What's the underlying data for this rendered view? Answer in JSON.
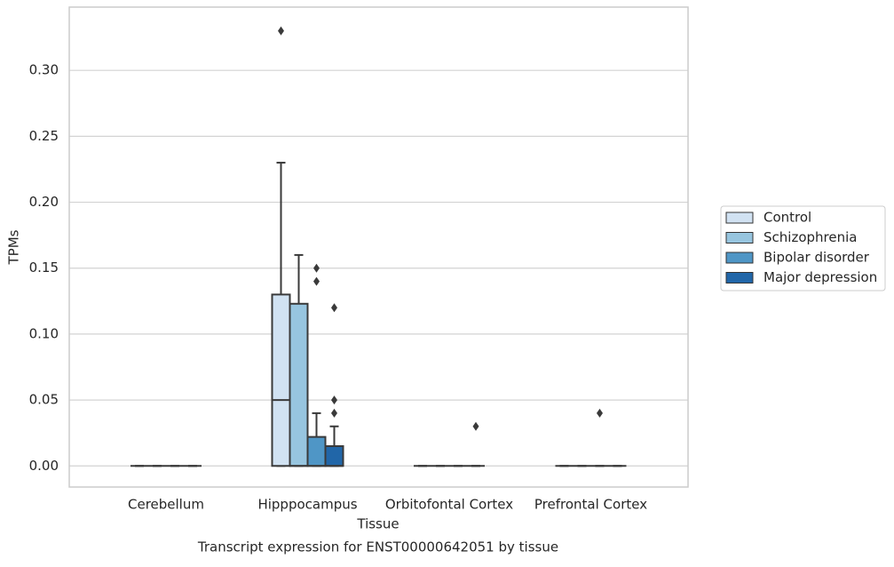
{
  "chart_data": {
    "type": "box",
    "title": "Transcript expression for ENST00000642051 by tissue",
    "x_label": "Tissue",
    "y_label": "TPMs",
    "categories": [
      "Cerebellum",
      "Hipppocampus",
      "Orbitofontal Cortex",
      "Prefrontal Cortex"
    ],
    "ylim": [
      -0.016,
      0.348
    ],
    "yticks": [
      {
        "value": 0,
        "label": "0.00"
      },
      0.05,
      {
        "value": 0.1,
        "label": "0.10"
      },
      0.15,
      {
        "value": 0.2,
        "label": "0.20"
      },
      0.25,
      {
        "value": 0.3,
        "label": "0.30"
      }
    ],
    "grid": true,
    "legend": "right",
    "series": [
      {
        "name": "Control",
        "color": "#d1e2f2",
        "boxes": [
          {
            "min": 0,
            "q1": 0,
            "median": 0,
            "q3": 0,
            "max": 0,
            "outliers": []
          },
          {
            "min": 0,
            "q1": 0,
            "median": 0.05,
            "q3": 0.13,
            "max": 0.23,
            "outliers": [
              0.33
            ]
          },
          {
            "min": 0,
            "q1": 0,
            "median": 0,
            "q3": 0,
            "max": 0,
            "outliers": []
          },
          {
            "min": 0,
            "q1": 0,
            "median": 0,
            "q3": 0,
            "max": 0,
            "outliers": []
          }
        ]
      },
      {
        "name": "Schizophrenia",
        "color": "#97c5df",
        "boxes": [
          {
            "min": 0,
            "q1": 0,
            "median": 0,
            "q3": 0,
            "max": 0,
            "outliers": []
          },
          {
            "min": 0,
            "q1": 0,
            "median": 0,
            "q3": 0.123,
            "max": 0.16,
            "outliers": []
          },
          {
            "min": 0,
            "q1": 0,
            "median": 0,
            "q3": 0,
            "max": 0,
            "outliers": []
          },
          {
            "min": 0,
            "q1": 0,
            "median": 0,
            "q3": 0,
            "max": 0,
            "outliers": []
          }
        ]
      },
      {
        "name": "Bipolar disorder",
        "color": "#4f96c6",
        "boxes": [
          {
            "min": 0,
            "q1": 0,
            "median": 0,
            "q3": 0,
            "max": 0,
            "outliers": []
          },
          {
            "min": 0,
            "q1": 0,
            "median": 0,
            "q3": 0.022,
            "max": 0.04,
            "outliers": [
              0.14,
              0.15
            ]
          },
          {
            "min": 0,
            "q1": 0,
            "median": 0,
            "q3": 0,
            "max": 0,
            "outliers": []
          },
          {
            "min": 0,
            "q1": 0,
            "median": 0,
            "q3": 0,
            "max": 0,
            "outliers": [
              0.04
            ]
          }
        ]
      },
      {
        "name": "Major depression",
        "color": "#2166a8",
        "boxes": [
          {
            "min": 0,
            "q1": 0,
            "median": 0,
            "q3": 0,
            "max": 0,
            "outliers": []
          },
          {
            "min": 0,
            "q1": 0,
            "median": 0,
            "q3": 0.015,
            "max": 0.03,
            "outliers": [
              0.04,
              0.05,
              0.12
            ]
          },
          {
            "min": 0,
            "q1": 0,
            "median": 0,
            "q3": 0,
            "max": 0,
            "outliers": [
              0.03
            ]
          },
          {
            "min": 0,
            "q1": 0,
            "median": 0,
            "q3": 0,
            "max": 0,
            "outliers": []
          }
        ]
      }
    ]
  }
}
